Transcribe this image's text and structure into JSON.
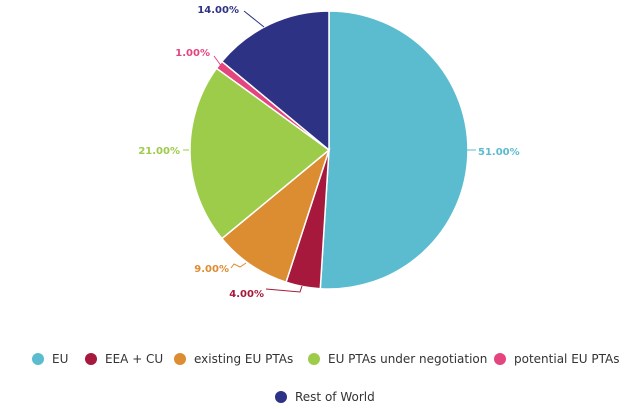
{
  "chart_data": {
    "type": "pie",
    "start_angle_deg": 0,
    "direction": "clockwise",
    "slices": [
      {
        "name": "EU",
        "value": 51.0,
        "label": "51.00%",
        "color": "#5bbccf"
      },
      {
        "name": "EEA + CU",
        "value": 4.0,
        "label": "4.00%",
        "color": "#a6183c"
      },
      {
        "name": "existing EU PTAs",
        "value": 9.0,
        "label": "9.00%",
        "color": "#dc8c31"
      },
      {
        "name": "EU PTAs under negotiation",
        "value": 21.0,
        "label": "21.00%",
        "color": "#9dcb4a"
      },
      {
        "name": "potential EU PTAs",
        "value": 1.0,
        "label": "1.00%",
        "color": "#e4457f"
      },
      {
        "name": "Rest of World",
        "value": 14.0,
        "label": "14.00%",
        "color": "#2e3285"
      }
    ],
    "legend": {
      "position": "bottom",
      "rows": [
        [
          "EU",
          "EEA + CU",
          "existing EU PTAs",
          "EU PTAs under negotiation",
          "potential EU PTAs"
        ],
        [
          "Rest of World"
        ]
      ]
    }
  }
}
